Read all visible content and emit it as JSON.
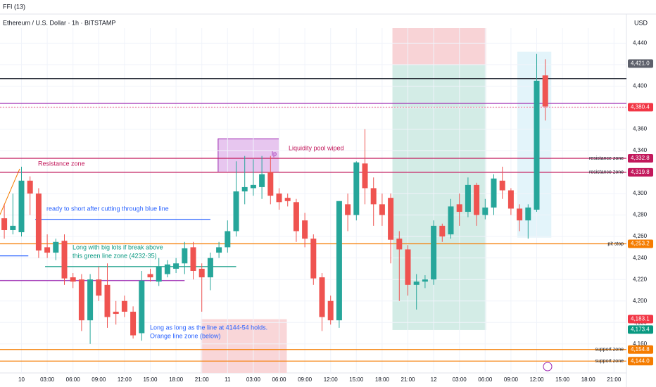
{
  "chart_data": {
    "type": "candlestick",
    "indicator": "FFI (13)",
    "title": "Ethereum / U.S. Dollar · 1h · BITSTAMP",
    "currency": "USD",
    "up_color": "#26a69a",
    "down_color": "#ef5350",
    "xlim": [
      -0.5,
      72.45
    ],
    "ylim": [
      4133,
      4454
    ],
    "xticks": [
      {
        "value": 2,
        "label": "10"
      },
      {
        "value": 5,
        "label": "03:00"
      },
      {
        "value": 8,
        "label": "06:00"
      },
      {
        "value": 11,
        "label": "09:00"
      },
      {
        "value": 14,
        "label": "12:00"
      },
      {
        "value": 17,
        "label": "15:00"
      },
      {
        "value": 20,
        "label": "18:00"
      },
      {
        "value": 23,
        "label": "21:00"
      },
      {
        "value": 26,
        "label": "11"
      },
      {
        "value": 29,
        "label": "03:00"
      },
      {
        "value": 32,
        "label": "06:00"
      },
      {
        "value": 35,
        "label": "09:00"
      },
      {
        "value": 38,
        "label": "12:00"
      },
      {
        "value": 41,
        "label": "15:00"
      },
      {
        "value": 44,
        "label": "18:00"
      },
      {
        "value": 47,
        "label": "21:00"
      },
      {
        "value": 50,
        "label": "12"
      },
      {
        "value": 53,
        "label": "03:00"
      },
      {
        "value": 56,
        "label": "06:00"
      },
      {
        "value": 59,
        "label": "09:00"
      },
      {
        "value": 62,
        "label": "12:00"
      },
      {
        "value": 65,
        "label": "15:00"
      },
      {
        "value": 68,
        "label": "18:00"
      },
      {
        "value": 71,
        "label": "21:00"
      }
    ],
    "yticks": [
      {
        "value": 4160,
        "label": "4,160"
      },
      {
        "value": 4180,
        "label": "4,180"
      },
      {
        "value": 4200,
        "label": "4,200"
      },
      {
        "value": 4220,
        "label": "4,220"
      },
      {
        "value": 4240,
        "label": "4,240"
      },
      {
        "value": 4260,
        "label": "4,260"
      },
      {
        "value": 4280,
        "label": "4,280"
      },
      {
        "value": 4300,
        "label": "4,300"
      },
      {
        "value": 4320,
        "label": "4,320"
      },
      {
        "value": 4340,
        "label": "4,340"
      },
      {
        "value": 4360,
        "label": "4,360"
      },
      {
        "value": 4380,
        "label": "4,380"
      },
      {
        "value": 4400,
        "label": "4,400"
      },
      {
        "value": 4420,
        "label": "4,420"
      },
      {
        "value": 4440,
        "label": "4,440"
      }
    ],
    "candles": {
      "open": [
        4277,
        4266,
        4264,
        4312,
        4300,
        4250,
        4245,
        4256,
        4222,
        4220,
        4182,
        4220,
        4215,
        4190,
        4200,
        4190,
        4170,
        4225,
        4218,
        4225,
        4230,
        4235,
        4250,
        4230,
        4222,
        4245,
        4250,
        4265,
        4302,
        4305,
        4306,
        4320,
        4300,
        4296,
        4292,
        4275,
        4258,
        4222,
        4200,
        4182,
        4290,
        4280,
        4328,
        4305,
        4290,
        4296,
        4258,
        4248,
        4215,
        4218,
        4220,
        4270,
        4262,
        4290,
        4283,
        4308,
        4280,
        4287,
        4312,
        4303,
        4286,
        4275,
        4285,
        4410
      ],
      "high": [
        4290,
        4300,
        4325,
        4316,
        4305,
        4262,
        4258,
        4262,
        4226,
        4225,
        4225,
        4232,
        4235,
        4200,
        4205,
        4195,
        4228,
        4230,
        4240,
        4238,
        4240,
        4255,
        4255,
        4235,
        4245,
        4255,
        4275,
        4330,
        4335,
        4332,
        4335,
        4335,
        4305,
        4300,
        4295,
        4282,
        4262,
        4226,
        4205,
        4293,
        4300,
        4330,
        4360,
        4315,
        4300,
        4300,
        4265,
        4252,
        4225,
        4224,
        4275,
        4272,
        4295,
        4300,
        4315,
        4310,
        4295,
        4318,
        4325,
        4305,
        4290,
        4290,
        4430,
        4425
      ],
      "low": [
        4258,
        4262,
        4260,
        4280,
        4240,
        4240,
        4238,
        4215,
        4212,
        4172,
        4160,
        4200,
        4175,
        4178,
        4185,
        4165,
        4163,
        4218,
        4214,
        4222,
        4226,
        4225,
        4220,
        4190,
        4210,
        4240,
        4245,
        4260,
        4290,
        4298,
        4295,
        4290,
        4285,
        4288,
        4255,
        4250,
        4215,
        4172,
        4178,
        4175,
        4265,
        4275,
        4290,
        4270,
        4270,
        4235,
        4200,
        4205,
        4192,
        4212,
        4215,
        4255,
        4258,
        4270,
        4278,
        4270,
        4276,
        4280,
        4295,
        4280,
        4265,
        4258,
        4283,
        4368
      ],
      "close": [
        4266,
        4270,
        4312,
        4300,
        4247,
        4245,
        4255,
        4221,
        4218,
        4182,
        4220,
        4205,
        4185,
        4188,
        4190,
        4168,
        4219,
        4222,
        4232,
        4234,
        4235,
        4249,
        4228,
        4222,
        4240,
        4250,
        4265,
        4302,
        4306,
        4308,
        4318,
        4298,
        4292,
        4293,
        4265,
        4258,
        4221,
        4185,
        4182,
        4293,
        4280,
        4329,
        4305,
        4290,
        4280,
        4257,
        4248,
        4215,
        4218,
        4220,
        4270,
        4260,
        4288,
        4283,
        4308,
        4280,
        4287,
        4314,
        4303,
        4286,
        4275,
        4287,
        4405,
        4381
      ]
    },
    "zones": [
      {
        "x": [
          45.2,
          56.1
        ],
        "y": [
          4420,
          4454
        ],
        "color": "#f8d3d6"
      },
      {
        "x": [
          45.2,
          56.1
        ],
        "y": [
          4173,
          4420
        ],
        "color": "#d3ece6"
      },
      {
        "x": [
          59.75,
          63.7
        ],
        "y": [
          4259,
          4432
        ],
        "color": "#e3f4fa"
      },
      {
        "x": [
          24.9,
          32.0
        ],
        "y": [
          4320,
          4351
        ],
        "color": "#e7c6ef"
      },
      {
        "x": [
          22.9,
          32.9
        ],
        "y": [
          4133,
          4183
        ],
        "color": "#f9d6d8"
      }
    ],
    "levels": [
      {
        "value": 4407,
        "color": "#131722"
      },
      {
        "value": 4384,
        "color": "#9c27b0"
      },
      {
        "value": 4380.4,
        "color": "#f48fb1",
        "dashed": true,
        "label": "4,380.4",
        "label_color": "#f23645"
      },
      {
        "value": 4332.8,
        "color": "#c2185b",
        "tag": "resistance zone",
        "label": "4,332.8",
        "label_color": "#c2185b"
      },
      {
        "value": 4319.8,
        "color": "#c2185b",
        "tag": "resistance zone",
        "label": "4,319.8",
        "label_color": "#c2185b"
      },
      {
        "value": 4253.2,
        "color": "#f57c00",
        "tag": "pit stop",
        "label": "4,253.2",
        "label_color": "#f57c00"
      },
      {
        "value": 4154.8,
        "color": "#f57c00",
        "tag": "support zone",
        "label": "4,154.8",
        "label_color": "#f57c00"
      },
      {
        "value": 4144.0,
        "color": "#f57c00",
        "tag": "support zone",
        "label": "4,144.0",
        "label_color": "#f57c00"
      },
      {
        "value": 4276,
        "color": "#2962ff",
        "x": [
          3.6,
          24
        ]
      },
      {
        "value": 4242,
        "color": "#2962ff",
        "x": [
          -0.5,
          2.8
        ]
      },
      {
        "value": 4232,
        "color": "#089981",
        "x": [
          4.75,
          27
        ]
      },
      {
        "value": 4219,
        "color": "#9c27b0",
        "x": [
          -0.5,
          21
        ]
      }
    ],
    "price_labels": [
      {
        "value": 4421.0,
        "label": "4,421.0",
        "color": "#5d606b"
      },
      {
        "value": 4183.1,
        "label": "4,183.1",
        "color": "#f23645"
      },
      {
        "value": 4173.4,
        "label": "4,173.4",
        "color": "#089981"
      }
    ],
    "annotations": [
      {
        "lines": [
          "Resistance zone"
        ],
        "color": "#c2185b"
      },
      {
        "lines": [
          "ready to short after cutting through blue line"
        ],
        "color": "#2962ff"
      },
      {
        "lines": [
          "Long with big lots if break above",
          "this green line zone (4232-35)"
        ],
        "color": "#089981"
      },
      {
        "lines": [
          "Liquidity pool wiped"
        ],
        "color": "#c2185b"
      },
      {
        "lines": [
          "lp"
        ],
        "color": "#9c27b0"
      },
      {
        "lines": [
          "Long as long as the line at 4144-54 holds.",
          "Orange line zone (below)"
        ],
        "color": "#2962ff"
      }
    ]
  }
}
